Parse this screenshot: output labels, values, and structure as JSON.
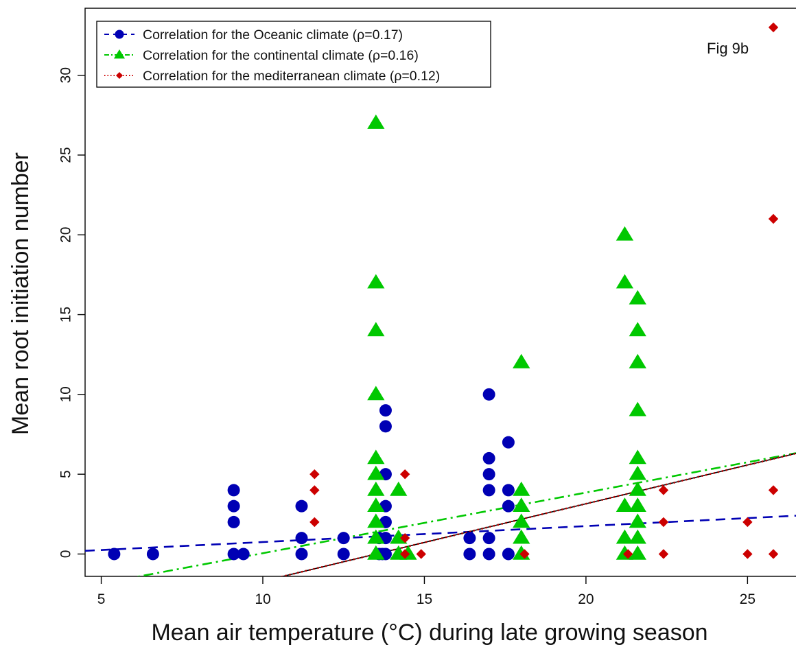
{
  "chart_data": {
    "type": "scatter",
    "xlabel": "Mean air temperature (°C) during late growing season",
    "ylabel": "Mean root initiation number",
    "annotation": "Fig 9b",
    "xlim": [
      4.5,
      26.5
    ],
    "ylim": [
      -1.4,
      34.2
    ],
    "x_ticks": [
      5,
      10,
      15,
      20,
      25
    ],
    "y_ticks": [
      0,
      5,
      10,
      15,
      20,
      25,
      30
    ],
    "legend_position": "top-left",
    "grid": false,
    "series": [
      {
        "name": "Correlation for the Oceanic climate (ρ=0.17)",
        "color": "#0000b4",
        "marker": "circle",
        "line_style": "dashed",
        "fit": {
          "slope": 0.1,
          "intercept": -0.25
        },
        "points": [
          [
            5.4,
            0
          ],
          [
            6.6,
            0
          ],
          [
            9.1,
            4
          ],
          [
            9.1,
            3
          ],
          [
            9.1,
            2
          ],
          [
            9.1,
            0
          ],
          [
            9.4,
            0
          ],
          [
            11.2,
            3
          ],
          [
            11.2,
            1
          ],
          [
            11.2,
            0
          ],
          [
            12.5,
            1
          ],
          [
            12.5,
            0
          ],
          [
            13.6,
            1
          ],
          [
            13.6,
            0
          ],
          [
            13.7,
            0
          ],
          [
            13.8,
            9
          ],
          [
            13.8,
            8
          ],
          [
            13.8,
            5
          ],
          [
            13.8,
            3
          ],
          [
            13.8,
            2
          ],
          [
            13.8,
            1
          ],
          [
            13.8,
            0
          ],
          [
            16.4,
            1
          ],
          [
            16.4,
            0
          ],
          [
            17.0,
            10
          ],
          [
            17.0,
            6
          ],
          [
            17.0,
            5
          ],
          [
            17.0,
            4
          ],
          [
            17.0,
            1
          ],
          [
            17.0,
            0
          ],
          [
            17.6,
            7
          ],
          [
            17.6,
            4
          ],
          [
            17.6,
            3
          ],
          [
            17.6,
            0
          ]
        ]
      },
      {
        "name": "Correlation for the continental climate (ρ=0.16)",
        "color": "#00c800",
        "marker": "triangle",
        "line_style": "dashdot",
        "fit": {
          "slope": 0.38,
          "intercept": -3.75
        },
        "points": [
          [
            13.5,
            27
          ],
          [
            13.5,
            17
          ],
          [
            13.5,
            14
          ],
          [
            13.5,
            10
          ],
          [
            13.5,
            6
          ],
          [
            13.5,
            5
          ],
          [
            13.5,
            4
          ],
          [
            13.5,
            3
          ],
          [
            13.5,
            2
          ],
          [
            13.5,
            1
          ],
          [
            13.5,
            0
          ],
          [
            14.2,
            4
          ],
          [
            14.2,
            1
          ],
          [
            14.2,
            0
          ],
          [
            14.5,
            0
          ],
          [
            18.0,
            12
          ],
          [
            18.0,
            4
          ],
          [
            18.0,
            3
          ],
          [
            18.0,
            2
          ],
          [
            18.0,
            1
          ],
          [
            18.0,
            0
          ],
          [
            21.2,
            20
          ],
          [
            21.2,
            17
          ],
          [
            21.2,
            3
          ],
          [
            21.2,
            1
          ],
          [
            21.2,
            0
          ],
          [
            21.6,
            16
          ],
          [
            21.6,
            14
          ],
          [
            21.6,
            12
          ],
          [
            21.6,
            9
          ],
          [
            21.6,
            6
          ],
          [
            21.6,
            5
          ],
          [
            21.6,
            4
          ],
          [
            21.6,
            3
          ],
          [
            21.6,
            2
          ],
          [
            21.6,
            1
          ],
          [
            21.6,
            0
          ]
        ]
      },
      {
        "name": "Correlation for the mediterranean climate (ρ=0.12)",
        "color": "#cc0000",
        "marker": "diamond",
        "line_style": "dotted",
        "fit": {
          "slope": 0.485,
          "intercept": -6.55
        },
        "points": [
          [
            11.6,
            5
          ],
          [
            11.6,
            4
          ],
          [
            11.6,
            2
          ],
          [
            14.4,
            5
          ],
          [
            14.4,
            1
          ],
          [
            14.4,
            0
          ],
          [
            14.9,
            0
          ],
          [
            18.1,
            0
          ],
          [
            21.3,
            0
          ],
          [
            22.4,
            4
          ],
          [
            22.4,
            2
          ],
          [
            22.4,
            0
          ],
          [
            25.0,
            2
          ],
          [
            25.0,
            0
          ],
          [
            25.8,
            33
          ],
          [
            25.8,
            21
          ],
          [
            25.8,
            4
          ],
          [
            25.8,
            0
          ]
        ]
      }
    ]
  }
}
